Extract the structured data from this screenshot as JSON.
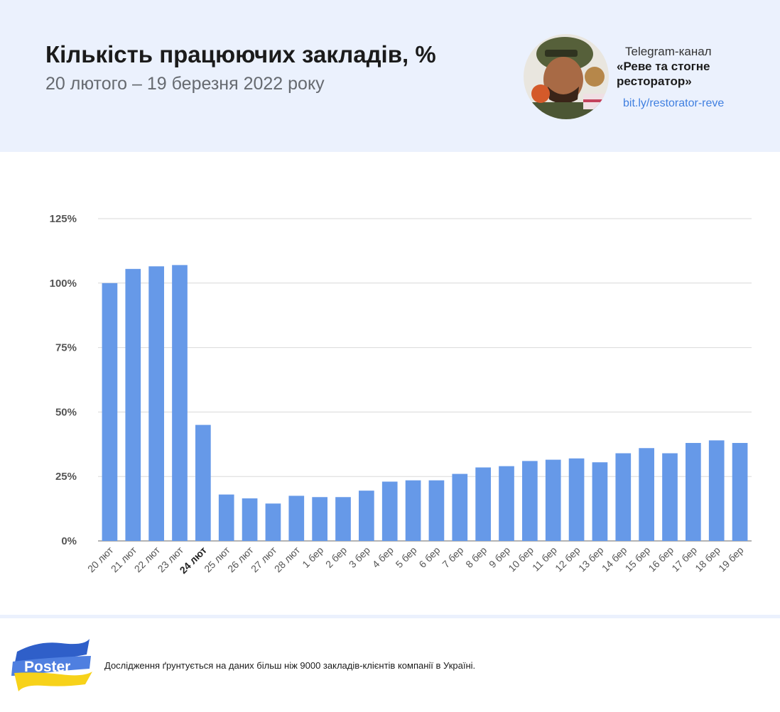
{
  "header": {
    "title": "Кількість працюючих закладів, %",
    "subtitle": "20 лютого – 19 березня 2022 року",
    "telegram_label": "Telegram-канал",
    "channel_name": "«Реве та стогне ресторатор»",
    "channel_link": "bit.ly/restorator-reve"
  },
  "footer": {
    "logo_text": "Poster",
    "note": "Дослідження ґрунтується на даних більш ніж 9000 закладів-клієнтів компанії в Україні."
  },
  "colors": {
    "bar": "#6699e8",
    "grid": "#d9d9d9",
    "header_bg": "#ebf1fd",
    "flag_blue": "#2f5fc9",
    "flag_yellow": "#f7d21a"
  },
  "chart_data": {
    "type": "bar",
    "categories": [
      "20 лют",
      "21 лют",
      "22 лют",
      "23 лют",
      "24 лют",
      "25 лют",
      "26 лют",
      "27 лют",
      "28 лют",
      "1 бер",
      "2 бер",
      "3 бер",
      "4 бер",
      "5 бер",
      "6 бер",
      "7 бер",
      "8 бер",
      "9 бер",
      "10 бер",
      "11 бер",
      "12 бер",
      "13 бер",
      "14 бер",
      "15 бер",
      "16 бер",
      "17 бер",
      "18 бер",
      "19 бер"
    ],
    "values": [
      100,
      105.5,
      106.5,
      107,
      45,
      18,
      16.5,
      14.5,
      17.5,
      17,
      17,
      19.5,
      23,
      23.5,
      23.5,
      26,
      28.5,
      29,
      31,
      31.5,
      32,
      30.5,
      34,
      36,
      34,
      38,
      39,
      38
    ],
    "highlight_category": "24 лют",
    "y_ticks": [
      "0%",
      "25%",
      "50%",
      "75%",
      "100%",
      "125%"
    ],
    "ylim": [
      0,
      125
    ],
    "grid": true,
    "xlabel": "",
    "ylabel": ""
  }
}
